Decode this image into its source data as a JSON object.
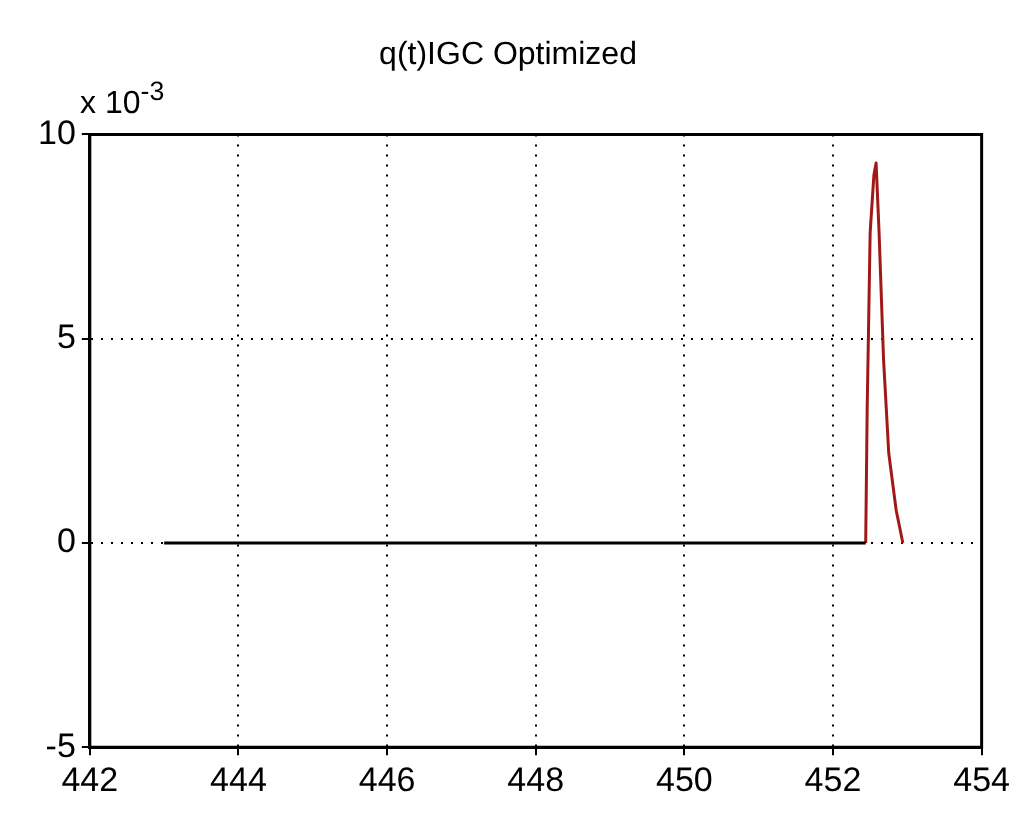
{
  "chart_data": {
    "type": "line",
    "title": "q(t)IGC Optimized",
    "annotations": [
      "x 10$^{-3}$"
    ],
    "series": [
      {
        "color": "#000000",
        "x": [
          443,
          452.44
        ],
        "values": [
          0,
          0
        ]
      },
      {
        "color": "#a01818",
        "x": [
          452.44,
          452.46,
          452.5,
          452.55,
          452.58,
          452.62,
          452.68,
          452.75,
          452.85,
          452.94
        ],
        "values": [
          0,
          3.3,
          7.6,
          9.0,
          9.3,
          7.6,
          4.5,
          2.2,
          0.8,
          0
        ]
      }
    ],
    "xlim": [
      442,
      454
    ],
    "xticks": [
      442,
      444,
      446,
      448,
      450,
      452,
      454
    ],
    "ylim": [
      -5,
      10
    ],
    "yticks": [
      -5,
      0,
      5,
      10
    ],
    "grid": true,
    "legend": false,
    "marker": "none",
    "line_style": "solid"
  }
}
